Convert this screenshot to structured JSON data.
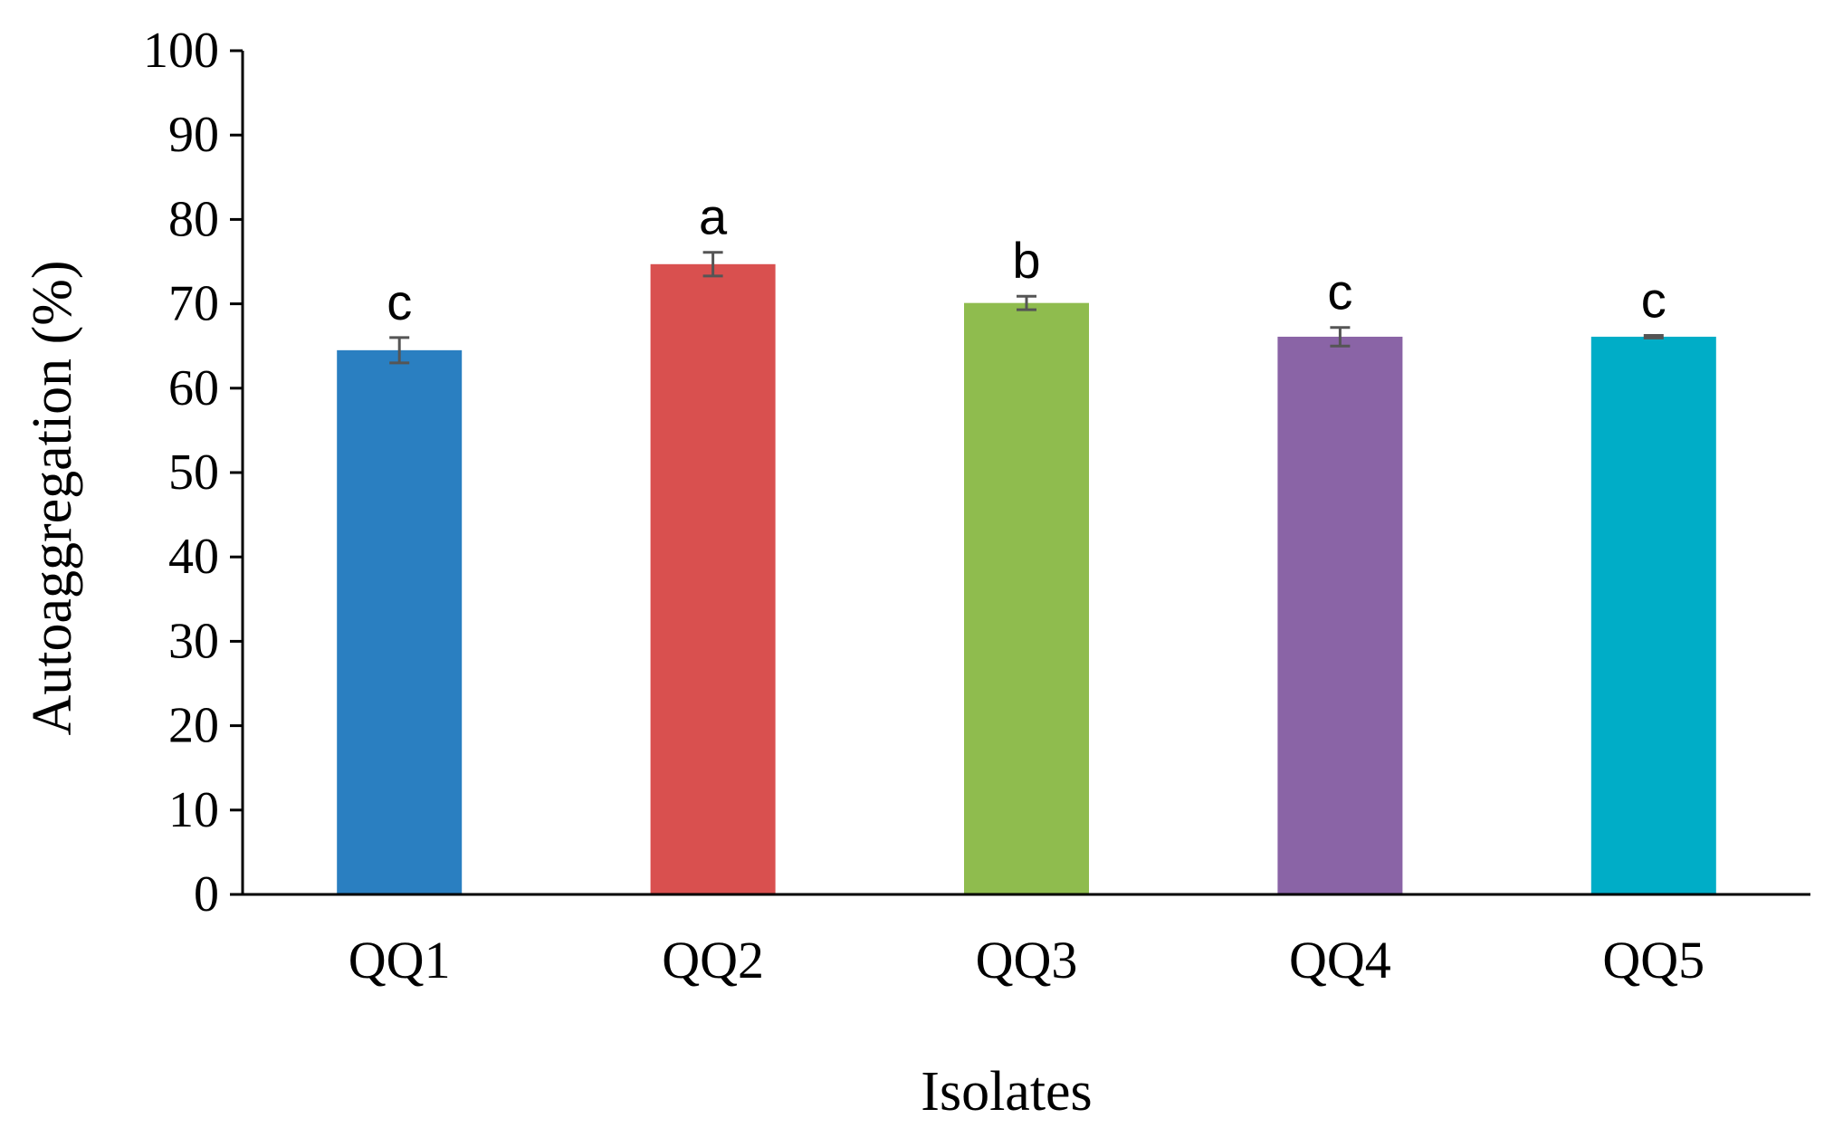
{
  "chart_data": {
    "type": "bar",
    "title": "",
    "xlabel": "Isolates",
    "ylabel": "Autoaggregation (%)",
    "ylim": [
      0,
      100
    ],
    "yticks": [
      "0",
      "10",
      "20",
      "30",
      "40",
      "50",
      "60",
      "70",
      "80",
      "90",
      "100"
    ],
    "categories": [
      "QQ1",
      "QQ2",
      "QQ3",
      "QQ4",
      "QQ5"
    ],
    "values": [
      64.5,
      74.7,
      70.1,
      66.1,
      66.1
    ],
    "errors": [
      1.5,
      1.4,
      0.8,
      1.1,
      0.15
    ],
    "significance_letters": [
      "c",
      "a",
      "b",
      "c",
      "c"
    ],
    "colors": [
      "#2a7fc1",
      "#d9504f",
      "#8fbc4e",
      "#8a64a6",
      "#00adc7"
    ],
    "error_bar_color": "#555555",
    "axis_color": "#000000",
    "grid": false,
    "legend": "none"
  }
}
